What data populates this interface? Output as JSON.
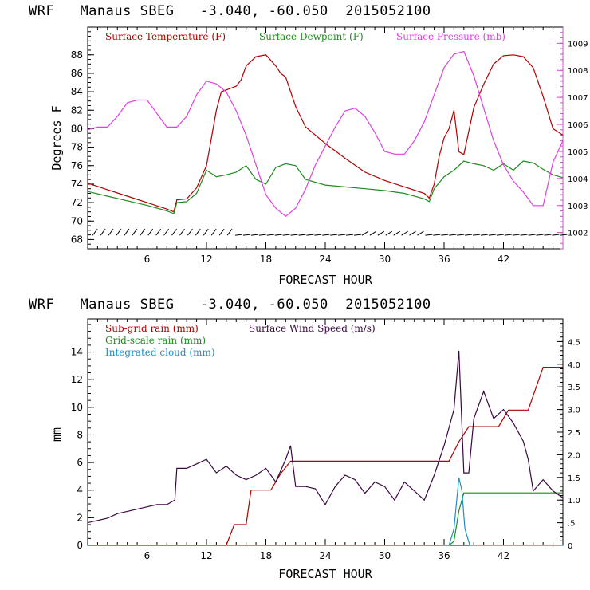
{
  "charts_header": [
    {
      "model": "WRF",
      "station": "Manaus SBEG",
      "coords": "-3.040, -60.050",
      "date": "2015052100"
    },
    {
      "model": "WRF",
      "station": "Manaus SBEG",
      "coords": "-3.040, -60.050",
      "date": "2015052100"
    }
  ],
  "chart_data": [
    {
      "type": "line",
      "title": "WRF   Manaus SBEG   -3.040, -60.050  2015052100",
      "xlabel": "FORECAST HOUR",
      "ylabel": "Degrees F",
      "xlim": [
        0,
        48
      ],
      "ylim": [
        67,
        91
      ],
      "x_ticks": [
        6,
        12,
        18,
        24,
        30,
        36,
        42
      ],
      "y_ticks": [
        68,
        70,
        72,
        74,
        76,
        78,
        80,
        82,
        84,
        86,
        88
      ],
      "y2label": "",
      "y2lim": [
        1001.4,
        1009.6
      ],
      "y2_ticks": [
        1002,
        1003,
        1004,
        1005,
        1006,
        1007,
        1008,
        1009
      ],
      "legend": [
        "Surface Temperature (F)",
        "Surface Dewpoint (F)",
        "Surface Pressure (mb)"
      ],
      "colors": {
        "temperature": "#b00000",
        "dewpoint": "#1e8c1e",
        "pressure": "#e040e0",
        "wind_barbs": "#000000"
      },
      "series": [
        {
          "name": "Surface Temperature (F)",
          "axis": "left",
          "color": "#b00000",
          "x": [
            0,
            2,
            4,
            6,
            8,
            8.7,
            9,
            10,
            11,
            12,
            12.5,
            13,
            13.5,
            14,
            14.5,
            15,
            15.5,
            16,
            17,
            18,
            19,
            19.5,
            20,
            21,
            22,
            24,
            26,
            28,
            30,
            32,
            34,
            34.5,
            35,
            35.5,
            36,
            36.5,
            37,
            37.5,
            38,
            39,
            40,
            41,
            42,
            43,
            44,
            45,
            46,
            47,
            48
          ],
          "y": [
            74.1,
            73.4,
            72.7,
            72.0,
            71.3,
            71.0,
            72.3,
            72.4,
            73.6,
            76.0,
            79.0,
            82.0,
            84.0,
            84.2,
            84.4,
            84.6,
            85.3,
            86.8,
            87.8,
            88.0,
            86.8,
            86.0,
            85.6,
            82.4,
            80.2,
            78.4,
            76.8,
            75.3,
            74.4,
            73.7,
            73.0,
            72.5,
            74.0,
            77.0,
            79.0,
            80.0,
            82.0,
            77.5,
            77.2,
            82.3,
            84.8,
            87.0,
            87.9,
            88.0,
            87.8,
            86.6,
            83.5,
            80.0,
            79.3
          ]
        },
        {
          "name": "Surface Dewpoint (F)",
          "axis": "left",
          "color": "#1e8c1e",
          "x": [
            0,
            2,
            4,
            6,
            8,
            8.7,
            9,
            10,
            11,
            12,
            13,
            14,
            15,
            16,
            17,
            18,
            19,
            20,
            21,
            22,
            24,
            26,
            28,
            30,
            32,
            34,
            34.5,
            35,
            36,
            37,
            38,
            39,
            40,
            41,
            42,
            43,
            44,
            45,
            46,
            47,
            48
          ],
          "y": [
            73.2,
            72.7,
            72.2,
            71.7,
            71.1,
            70.8,
            72.0,
            72.1,
            73.0,
            75.5,
            74.8,
            75.0,
            75.3,
            76.0,
            74.5,
            74.0,
            75.8,
            76.2,
            76.0,
            74.5,
            73.9,
            73.7,
            73.5,
            73.3,
            73.0,
            72.4,
            72.1,
            73.5,
            74.8,
            75.5,
            76.5,
            76.2,
            76.0,
            75.5,
            76.2,
            75.5,
            76.5,
            76.3,
            75.6,
            75.0,
            74.7
          ]
        },
        {
          "name": "Surface Pressure (mb)",
          "axis": "right",
          "color": "#e040e0",
          "x": [
            0,
            1,
            2,
            3,
            4,
            5,
            6,
            7,
            8,
            9,
            10,
            11,
            12,
            13,
            14,
            15,
            16,
            17,
            18,
            19,
            20,
            21,
            22,
            23,
            24,
            25,
            26,
            27,
            28,
            29,
            30,
            31,
            32,
            33,
            34,
            35,
            36,
            37,
            38,
            39,
            40,
            41,
            42,
            43,
            44,
            45,
            46,
            47,
            48
          ],
          "y": [
            1005.8,
            1005.9,
            1005.9,
            1006.3,
            1006.8,
            1006.9,
            1006.9,
            1006.4,
            1005.9,
            1005.9,
            1006.3,
            1007.1,
            1007.6,
            1007.5,
            1007.2,
            1006.5,
            1005.6,
            1004.5,
            1003.4,
            1002.9,
            1002.6,
            1002.9,
            1003.6,
            1004.5,
            1005.2,
            1005.9,
            1006.5,
            1006.6,
            1006.3,
            1005.7,
            1005.0,
            1004.9,
            1004.9,
            1005.4,
            1006.1,
            1007.1,
            1008.1,
            1008.6,
            1008.7,
            1007.8,
            1006.6,
            1005.4,
            1004.5,
            1003.9,
            1003.5,
            1003.0,
            1003.0,
            1004.6,
            1005.4
          ]
        }
      ]
    },
    {
      "type": "line",
      "title": "WRF   Manaus SBEG   -3.040, -60.050  2015052100",
      "xlabel": "FORECAST HOUR",
      "ylabel": "mm",
      "xlim": [
        0,
        48
      ],
      "ylim": [
        0,
        16.4
      ],
      "x_ticks": [
        6,
        12,
        18,
        24,
        30,
        36,
        42
      ],
      "y_ticks": [
        0,
        2,
        4,
        6,
        8,
        10,
        12,
        14
      ],
      "y2lim": [
        0,
        5.0
      ],
      "y2_ticks": [
        0,
        0.5,
        1.0,
        1.5,
        2.0,
        2.5,
        3.0,
        3.5,
        4.0,
        4.5
      ],
      "y2_tick_labels": [
        "0",
        ".5",
        "1.0",
        "1.5",
        "2.0",
        "2.5",
        "3.0",
        "3.5",
        "4.0",
        "4.5"
      ],
      "legend": [
        "Sub-grid rain (mm)",
        "Surface Wind Speed (m/s)",
        "Grid-scale rain (mm)",
        "Integrated cloud (mm)"
      ],
      "colors": {
        "subgrid": "#b00000",
        "wind": "#3a0840",
        "gridscale": "#1e8c1e",
        "cloud": "#1e90c8"
      },
      "series": [
        {
          "name": "Sub-grid rain (mm)",
          "axis": "left",
          "color": "#b00000",
          "x": [
            0,
            14,
            14.8,
            16,
            16.5,
            18.5,
            19.5,
            20.5,
            22,
            30,
            35,
            36.5,
            37.5,
            38.5,
            39,
            41.5,
            42.5,
            44.5,
            46,
            48
          ],
          "y": [
            0,
            0,
            1.5,
            1.5,
            4.0,
            4.0,
            5.2,
            6.1,
            6.1,
            6.1,
            6.1,
            6.1,
            7.5,
            8.6,
            8.6,
            8.6,
            9.8,
            9.8,
            12.9,
            12.9
          ]
        },
        {
          "name": "Grid-scale rain (mm)",
          "axis": "left",
          "color": "#1e8c1e",
          "x": [
            0,
            36.5,
            37,
            37.5,
            38,
            38.5,
            39,
            48
          ],
          "y": [
            0,
            0,
            0.3,
            2.5,
            3.8,
            3.8,
            3.8,
            3.8
          ]
        },
        {
          "name": "Integrated cloud (mm)",
          "axis": "left",
          "color": "#1e90c8",
          "x": [
            0,
            36.5,
            37,
            37.5,
            37.8,
            38.1,
            38.6,
            48
          ],
          "y": [
            0,
            0,
            1.2,
            4.9,
            4.0,
            1.2,
            0,
            0
          ]
        },
        {
          "name": "Surface Wind Speed (m/s)",
          "axis": "right",
          "color": "#3a0840",
          "x": [
            0,
            1,
            2,
            3,
            4,
            5,
            6,
            7,
            8,
            8.8,
            9,
            10,
            11,
            12,
            13,
            14,
            15,
            16,
            17,
            18,
            19,
            20,
            20.5,
            21,
            22,
            23,
            24,
            25,
            26,
            27,
            28,
            29,
            30,
            31,
            32,
            33,
            34,
            35,
            36,
            37,
            37.5,
            38,
            38.5,
            39,
            40,
            41,
            42,
            43,
            44,
            44.5,
            45,
            46,
            47,
            48
          ],
          "y": [
            0.5,
            0.55,
            0.6,
            0.7,
            0.75,
            0.8,
            0.85,
            0.9,
            0.9,
            1.0,
            1.7,
            1.7,
            1.8,
            1.9,
            1.6,
            1.75,
            1.55,
            1.45,
            1.55,
            1.7,
            1.4,
            1.9,
            2.2,
            1.3,
            1.3,
            1.25,
            0.9,
            1.3,
            1.55,
            1.45,
            1.15,
            1.4,
            1.3,
            1.0,
            1.4,
            1.2,
            1.0,
            1.55,
            2.2,
            3.0,
            4.3,
            1.6,
            1.6,
            2.8,
            3.4,
            2.8,
            3.0,
            2.7,
            2.3,
            1.9,
            1.2,
            1.45,
            1.2,
            1.05
          ]
        }
      ]
    }
  ]
}
